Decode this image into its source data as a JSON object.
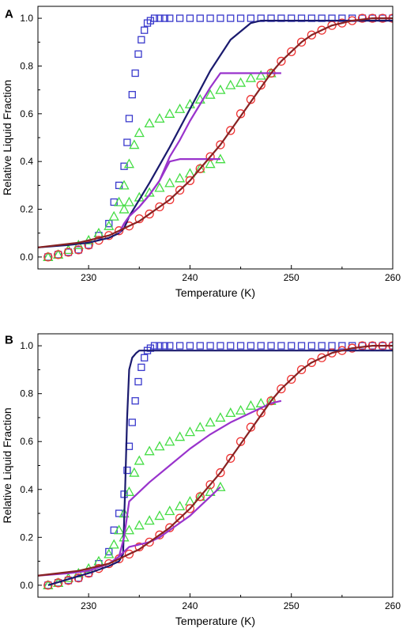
{
  "chart_data": [
    {
      "panel_label": "A",
      "type": "scatter",
      "xlabel": "Temperature (K)",
      "ylabel": "Relative Liquid Fraction",
      "xlim": [
        225,
        260
      ],
      "ylim": [
        -0.05,
        1.05
      ],
      "xticks": [
        230,
        240,
        250,
        260
      ],
      "yticks": [
        0.0,
        0.2,
        0.4,
        0.6,
        0.8,
        1.0
      ],
      "grid": false,
      "legend": "none",
      "series": [
        {
          "marker": "square",
          "color": "#3a3acc",
          "x": [
            226,
            227,
            228,
            229,
            230,
            231,
            232,
            232.5,
            233,
            233.5,
            233.8,
            234,
            234.3,
            234.6,
            234.9,
            235.2,
            235.5,
            235.8,
            236.1,
            236.5,
            237,
            237.5,
            238,
            239,
            240,
            241,
            242,
            243,
            244,
            245,
            246,
            247,
            248,
            249,
            250,
            251,
            252,
            253,
            254,
            255,
            256,
            257,
            258,
            259,
            260
          ],
          "y": [
            0.0,
            0.01,
            0.02,
            0.03,
            0.05,
            0.09,
            0.14,
            0.23,
            0.3,
            0.38,
            0.48,
            0.58,
            0.68,
            0.77,
            0.85,
            0.91,
            0.95,
            0.98,
            0.99,
            1.0,
            1.0,
            1.0,
            1.0,
            1.0,
            1.0,
            1.0,
            1.0,
            1.0,
            1.0,
            1.0,
            1.0,
            1.0,
            1.0,
            1.0,
            1.0,
            1.0,
            1.0,
            1.0,
            1.0,
            1.0,
            1.0,
            1.0,
            1.0,
            1.0,
            1.0
          ]
        },
        {
          "marker": "triangle",
          "color": "#44dd44",
          "x": [
            226,
            227,
            228,
            229,
            230,
            231,
            232,
            232.5,
            233,
            233.5,
            234,
            234.5,
            235,
            236,
            237,
            238,
            239,
            240,
            241,
            242,
            243,
            244,
            245,
            246,
            247,
            248,
            233.5,
            234,
            235,
            236,
            237,
            238,
            239,
            240,
            241,
            242,
            243
          ],
          "y": [
            0.0,
            0.01,
            0.03,
            0.05,
            0.07,
            0.1,
            0.13,
            0.17,
            0.23,
            0.3,
            0.39,
            0.47,
            0.52,
            0.56,
            0.58,
            0.6,
            0.62,
            0.64,
            0.66,
            0.68,
            0.7,
            0.72,
            0.73,
            0.75,
            0.76,
            0.77,
            0.2,
            0.23,
            0.25,
            0.27,
            0.29,
            0.31,
            0.33,
            0.35,
            0.37,
            0.39,
            0.41
          ]
        },
        {
          "marker": "circle",
          "color": "#ee3333",
          "x": [
            226,
            227,
            228,
            229,
            230,
            231,
            232,
            233,
            234,
            235,
            236,
            237,
            238,
            239,
            240,
            241,
            242,
            243,
            244,
            245,
            246,
            247,
            248,
            249,
            250,
            251,
            252,
            253,
            254,
            255,
            256,
            257,
            258,
            259,
            260
          ],
          "y": [
            0.0,
            0.01,
            0.02,
            0.03,
            0.05,
            0.07,
            0.09,
            0.11,
            0.13,
            0.16,
            0.18,
            0.21,
            0.24,
            0.28,
            0.32,
            0.37,
            0.42,
            0.47,
            0.53,
            0.6,
            0.66,
            0.72,
            0.77,
            0.82,
            0.86,
            0.9,
            0.93,
            0.95,
            0.97,
            0.98,
            0.99,
            1.0,
            1.0,
            1.0,
            1.0
          ]
        },
        {
          "marker": "line",
          "color": "#1a1a6e",
          "x": [
            225,
            228,
            230,
            232,
            233,
            233.5,
            234,
            236,
            238,
            240,
            242,
            244,
            246,
            247,
            248,
            250,
            252,
            255,
            260
          ],
          "y": [
            0.04,
            0.05,
            0.06,
            0.08,
            0.1,
            0.12,
            0.17,
            0.31,
            0.46,
            0.62,
            0.78,
            0.91,
            0.98,
            0.99,
            0.99,
            0.99,
            0.99,
            0.99,
            0.99
          ]
        },
        {
          "marker": "line",
          "color": "#9933cc",
          "x": [
            233,
            233.5,
            234,
            235,
            236,
            237,
            238,
            239,
            240,
            241,
            242,
            243,
            244,
            245,
            246,
            247,
            248,
            249
          ],
          "y": [
            0.1,
            0.14,
            0.17,
            0.21,
            0.26,
            0.32,
            0.42,
            0.49,
            0.57,
            0.64,
            0.71,
            0.77,
            0.77,
            0.77,
            0.77,
            0.77,
            0.77,
            0.77
          ]
        },
        {
          "marker": "line",
          "color": "#9933cc",
          "x": [
            233,
            233.5,
            234,
            235,
            236,
            237,
            237.5,
            238,
            239,
            240,
            241,
            242,
            243
          ],
          "y": [
            0.1,
            0.14,
            0.17,
            0.21,
            0.26,
            0.32,
            0.36,
            0.4,
            0.41,
            0.41,
            0.41,
            0.41,
            0.41
          ]
        },
        {
          "marker": "line",
          "color": "#882222",
          "x": [
            225,
            226,
            227,
            228,
            229,
            230,
            231,
            232,
            233,
            234,
            235,
            236,
            237,
            238,
            239,
            240,
            241,
            242,
            243,
            244,
            245,
            246,
            247,
            248,
            249,
            250,
            251,
            252,
            253,
            254,
            255,
            256,
            257,
            258,
            259,
            260
          ],
          "y": [
            0.04,
            0.045,
            0.05,
            0.055,
            0.06,
            0.07,
            0.08,
            0.09,
            0.11,
            0.13,
            0.15,
            0.18,
            0.21,
            0.24,
            0.28,
            0.32,
            0.37,
            0.42,
            0.47,
            0.53,
            0.59,
            0.65,
            0.71,
            0.77,
            0.82,
            0.86,
            0.9,
            0.93,
            0.95,
            0.97,
            0.98,
            0.99,
            0.995,
            1.0,
            1.0,
            1.0
          ]
        }
      ]
    },
    {
      "panel_label": "B",
      "type": "scatter",
      "xlabel": "Temperature (K)",
      "ylabel": "Relative Liquid Fraction",
      "xlim": [
        225,
        260
      ],
      "ylim": [
        -0.05,
        1.05
      ],
      "xticks": [
        230,
        240,
        250,
        260
      ],
      "yticks": [
        0.0,
        0.2,
        0.4,
        0.6,
        0.8,
        1.0
      ],
      "grid": false,
      "legend": "none",
      "series": [
        {
          "marker": "square",
          "color": "#3a3acc",
          "x": [
            226,
            227,
            228,
            229,
            230,
            231,
            232,
            232.5,
            233,
            233.5,
            233.8,
            234,
            234.3,
            234.6,
            234.9,
            235.2,
            235.5,
            235.8,
            236.1,
            236.5,
            237,
            237.5,
            238,
            239,
            240,
            241,
            242,
            243,
            244,
            245,
            246,
            247,
            248,
            249,
            250,
            251,
            252,
            253,
            254,
            255,
            256,
            257,
            258,
            259,
            260
          ],
          "y": [
            0.0,
            0.01,
            0.02,
            0.03,
            0.05,
            0.09,
            0.14,
            0.23,
            0.3,
            0.38,
            0.48,
            0.58,
            0.68,
            0.77,
            0.85,
            0.91,
            0.95,
            0.98,
            0.99,
            1.0,
            1.0,
            1.0,
            1.0,
            1.0,
            1.0,
            1.0,
            1.0,
            1.0,
            1.0,
            1.0,
            1.0,
            1.0,
            1.0,
            1.0,
            1.0,
            1.0,
            1.0,
            1.0,
            1.0,
            1.0,
            1.0,
            1.0,
            1.0,
            1.0,
            1.0
          ]
        },
        {
          "marker": "triangle",
          "color": "#44dd44",
          "x": [
            226,
            227,
            228,
            229,
            230,
            231,
            232,
            232.5,
            233,
            233.5,
            234,
            234.5,
            235,
            236,
            237,
            238,
            239,
            240,
            241,
            242,
            243,
            244,
            245,
            246,
            247,
            248,
            233.5,
            234,
            235,
            236,
            237,
            238,
            239,
            240,
            241,
            242,
            243
          ],
          "y": [
            0.0,
            0.01,
            0.03,
            0.05,
            0.07,
            0.1,
            0.13,
            0.17,
            0.23,
            0.3,
            0.39,
            0.47,
            0.52,
            0.56,
            0.58,
            0.6,
            0.62,
            0.64,
            0.66,
            0.68,
            0.7,
            0.72,
            0.73,
            0.75,
            0.76,
            0.77,
            0.2,
            0.23,
            0.25,
            0.27,
            0.29,
            0.31,
            0.33,
            0.35,
            0.37,
            0.39,
            0.41
          ]
        },
        {
          "marker": "circle",
          "color": "#ee3333",
          "x": [
            226,
            227,
            228,
            229,
            230,
            231,
            232,
            233,
            234,
            235,
            236,
            237,
            238,
            239,
            240,
            241,
            242,
            243,
            244,
            245,
            246,
            247,
            248,
            249,
            250,
            251,
            252,
            253,
            254,
            255,
            256,
            257,
            258,
            259,
            260
          ],
          "y": [
            0.0,
            0.01,
            0.02,
            0.03,
            0.05,
            0.07,
            0.09,
            0.11,
            0.13,
            0.16,
            0.18,
            0.21,
            0.24,
            0.28,
            0.32,
            0.37,
            0.42,
            0.47,
            0.53,
            0.6,
            0.66,
            0.72,
            0.77,
            0.82,
            0.86,
            0.9,
            0.93,
            0.95,
            0.97,
            0.98,
            0.99,
            1.0,
            1.0,
            1.0,
            1.0
          ]
        },
        {
          "marker": "line",
          "color": "#1a1a6e",
          "x": [
            226,
            230,
            232,
            233,
            233.4,
            233.6,
            233.8,
            234,
            234.3,
            234.7,
            235,
            236,
            237,
            240,
            245,
            250,
            255,
            260
          ],
          "y": [
            0.0,
            0.05,
            0.08,
            0.1,
            0.13,
            0.4,
            0.7,
            0.9,
            0.95,
            0.97,
            0.98,
            0.98,
            0.98,
            0.98,
            0.98,
            0.98,
            0.98,
            0.98
          ]
        },
        {
          "marker": "line",
          "color": "#9933cc",
          "x": [
            225,
            228,
            230,
            232,
            233,
            233.5,
            234,
            235,
            236,
            238,
            240,
            242,
            244,
            246,
            248,
            249
          ],
          "y": [
            0.04,
            0.05,
            0.06,
            0.09,
            0.12,
            0.2,
            0.35,
            0.39,
            0.43,
            0.5,
            0.57,
            0.63,
            0.68,
            0.72,
            0.76,
            0.77
          ]
        },
        {
          "marker": "line",
          "color": "#9933cc",
          "x": [
            233,
            233.5,
            234,
            235,
            236,
            237,
            238,
            239,
            240,
            241,
            242,
            243
          ],
          "y": [
            0.12,
            0.14,
            0.16,
            0.17,
            0.18,
            0.2,
            0.23,
            0.26,
            0.29,
            0.33,
            0.37,
            0.41
          ]
        },
        {
          "marker": "line",
          "color": "#882222",
          "x": [
            225,
            226,
            227,
            228,
            229,
            230,
            231,
            232,
            233,
            234,
            235,
            236,
            237,
            238,
            239,
            240,
            241,
            242,
            243,
            244,
            245,
            246,
            247,
            248,
            249,
            250,
            251,
            252,
            253,
            254,
            255,
            256,
            257,
            258,
            259,
            260
          ],
          "y": [
            0.04,
            0.045,
            0.05,
            0.055,
            0.06,
            0.07,
            0.08,
            0.09,
            0.11,
            0.13,
            0.15,
            0.18,
            0.21,
            0.24,
            0.28,
            0.32,
            0.37,
            0.42,
            0.47,
            0.53,
            0.59,
            0.65,
            0.71,
            0.77,
            0.82,
            0.86,
            0.9,
            0.93,
            0.95,
            0.97,
            0.98,
            0.99,
            0.995,
            1.0,
            1.0,
            1.0
          ]
        }
      ]
    }
  ]
}
